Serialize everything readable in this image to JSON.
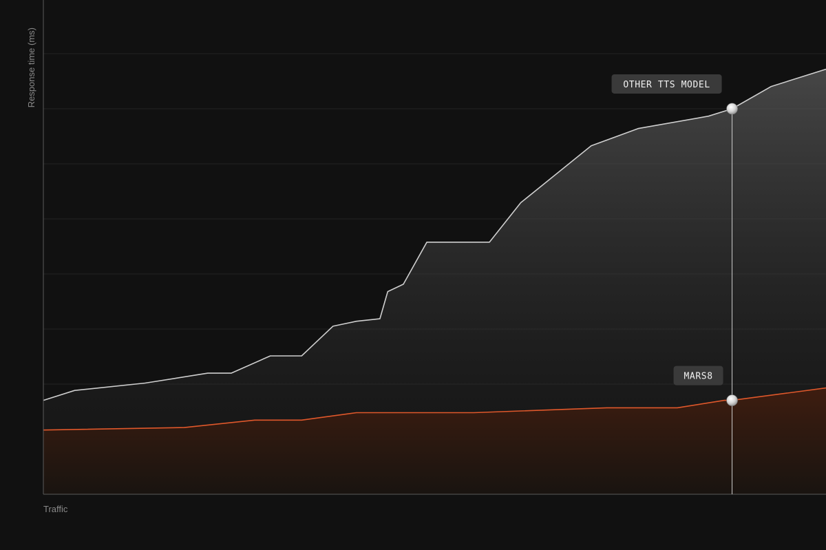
{
  "colors": {
    "background": "#111111",
    "grid": "#242424",
    "axis": "#5a5a5a",
    "axis_text": "#8a8a8a",
    "other_line": "#cfcfcf",
    "other_fill": "#4a4a4a",
    "mars_line": "#e0582b",
    "mars_fill": "#3a1c10",
    "callout_bg": "#3a3a3a",
    "callout_text": "#f2f2f2",
    "marker_line": "#cfcfcf"
  },
  "chart_data": {
    "type": "area",
    "title": "",
    "xlabel": "Traffic",
    "ylabel": "Response time (ms)",
    "xlim": [
      0,
      100
    ],
    "ylim": [
      0,
      100
    ],
    "grid": true,
    "legend": "none",
    "series": [
      {
        "name": "OTHER TTS MODEL",
        "x": [
          0,
          4,
          13,
          21,
          24,
          29,
          33,
          37,
          40,
          43,
          44,
          46,
          49,
          57,
          61,
          70,
          76,
          85,
          88,
          93,
          100
        ],
        "values": [
          19,
          21,
          22.5,
          24.5,
          24.5,
          28,
          28,
          34,
          35,
          35.5,
          41,
          42.5,
          51,
          51,
          59,
          70.5,
          74,
          76.5,
          78,
          82.5,
          86
        ]
      },
      {
        "name": "MARS8",
        "x": [
          0,
          18,
          27,
          33,
          40,
          55,
          72,
          81,
          87,
          88,
          100
        ],
        "values": [
          13,
          13.5,
          15,
          15,
          16.5,
          16.5,
          17.5,
          17.5,
          19,
          19,
          21.5
        ]
      }
    ],
    "annotations": [
      {
        "label": "OTHER TTS MODEL",
        "series": "OTHER TTS MODEL",
        "x": 88,
        "y": 78
      },
      {
        "label": "MARS8",
        "series": "MARS8",
        "x": 88,
        "y": 19
      }
    ],
    "reference_line": {
      "x": 88
    }
  }
}
